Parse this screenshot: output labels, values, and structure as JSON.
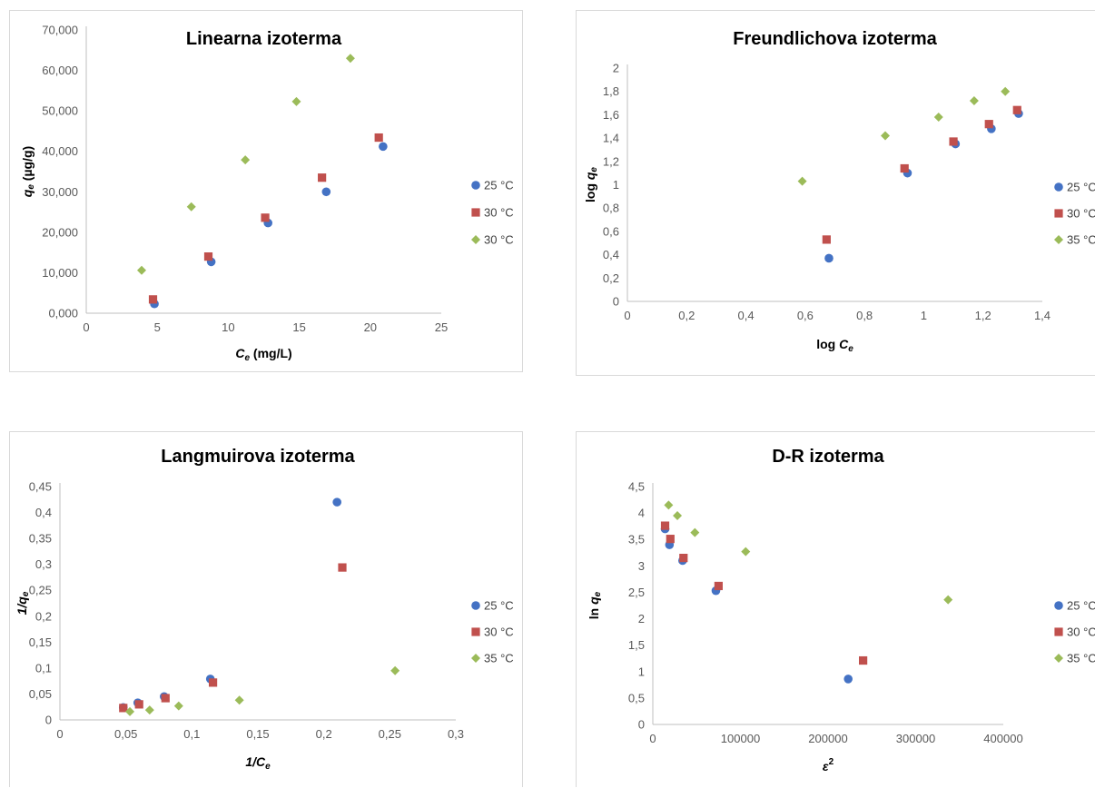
{
  "chart_data": [
    {
      "type": "scatter",
      "title": "Linearna izoterma",
      "xlabel": {
        "var": "C",
        "sub": "e",
        "rest": " (mg/L)"
      },
      "ylabel": {
        "var": "q",
        "sub": "e",
        "rest": " (µg/g)"
      },
      "xlim": [
        0,
        25
      ],
      "ylim": [
        0,
        70000
      ],
      "xticks": [
        "0",
        "5",
        "10",
        "15",
        "20",
        "25"
      ],
      "yticks": [
        "0,000",
        "10,000",
        "20,000",
        "30,000",
        "40,000",
        "50,000",
        "60,000",
        "70,000"
      ],
      "grid": false,
      "legend_position": "right",
      "series": [
        {
          "name": "25 °C",
          "color": "#4472c4",
          "marker": "circle",
          "points": [
            [
              4.8,
              2300
            ],
            [
              8.8,
              12700
            ],
            [
              12.8,
              22300
            ],
            [
              16.9,
              30000
            ],
            [
              20.9,
              41200
            ]
          ]
        },
        {
          "name": "30 °C",
          "color": "#c0504d",
          "marker": "square",
          "points": [
            [
              4.7,
              3400
            ],
            [
              8.6,
              14000
            ],
            [
              12.6,
              23600
            ],
            [
              16.6,
              33500
            ],
            [
              20.6,
              43400
            ]
          ]
        },
        {
          "name": "30 °C",
          "color": "#9bbb59",
          "marker": "diamond",
          "points": [
            [
              3.9,
              10600
            ],
            [
              7.4,
              26300
            ],
            [
              11.2,
              37900
            ],
            [
              14.8,
              52300
            ],
            [
              18.6,
              63000
            ]
          ]
        }
      ]
    },
    {
      "type": "scatter",
      "title": "Freundlichova izoterma",
      "xlabel": {
        "var": "log C",
        "sub": "e",
        "rest": ""
      },
      "ylabel": {
        "var": "log q",
        "sub": "e",
        "rest": ""
      },
      "xlim": [
        0,
        1.4
      ],
      "ylim": [
        0,
        2
      ],
      "xticks": [
        "0",
        "0,2",
        "0,4",
        "0,6",
        "0,8",
        "1",
        "1,2",
        "1,4"
      ],
      "yticks": [
        "0",
        "0,2",
        "0,4",
        "0,6",
        "0,8",
        "1",
        "1,2",
        "1,4",
        "1,6",
        "1,8",
        "2"
      ],
      "grid": false,
      "legend_position": "right",
      "series": [
        {
          "name": "25 °C",
          "color": "#4472c4",
          "marker": "circle",
          "points": [
            [
              0.68,
              0.37
            ],
            [
              0.945,
              1.1
            ],
            [
              1.107,
              1.35
            ],
            [
              1.228,
              1.48
            ],
            [
              1.32,
              1.61
            ]
          ]
        },
        {
          "name": "30 °C",
          "color": "#c0504d",
          "marker": "square",
          "points": [
            [
              0.672,
              0.53
            ],
            [
              0.935,
              1.14
            ],
            [
              1.1,
              1.37
            ],
            [
              1.22,
              1.52
            ],
            [
              1.315,
              1.64
            ]
          ]
        },
        {
          "name": "35 °C",
          "color": "#9bbb59",
          "marker": "diamond",
          "points": [
            [
              0.59,
              1.03
            ],
            [
              0.87,
              1.42
            ],
            [
              1.05,
              1.58
            ],
            [
              1.17,
              1.72
            ],
            [
              1.275,
              1.8
            ]
          ]
        }
      ]
    },
    {
      "type": "scatter",
      "title": "Langmuirova izoterma",
      "xlabel": {
        "var": "1/C",
        "sub": "e",
        "rest": ""
      },
      "ylabel": {
        "var": "1/q",
        "sub": "e",
        "rest": ""
      },
      "xlim": [
        0,
        0.3
      ],
      "ylim": [
        0,
        0.45
      ],
      "xticks": [
        "0",
        "0,05",
        "0,1",
        "0,15",
        "0,2",
        "0,25",
        "0,3"
      ],
      "yticks": [
        "0",
        "0,05",
        "0,1",
        "0,15",
        "0,2",
        "0,25",
        "0,3",
        "0,35",
        "0,4",
        "0,45"
      ],
      "grid": false,
      "legend_position": "right",
      "series": [
        {
          "name": "25 °C",
          "color": "#4472c4",
          "marker": "circle",
          "points": [
            [
              0.048,
              0.024
            ],
            [
              0.059,
              0.033
            ],
            [
              0.079,
              0.045
            ],
            [
              0.114,
              0.079
            ],
            [
              0.21,
              0.42
            ]
          ]
        },
        {
          "name": "30 °C",
          "color": "#c0504d",
          "marker": "square",
          "points": [
            [
              0.048,
              0.023
            ],
            [
              0.06,
              0.03
            ],
            [
              0.08,
              0.042
            ],
            [
              0.116,
              0.072
            ],
            [
              0.214,
              0.294
            ]
          ]
        },
        {
          "name": "35 °C",
          "color": "#9bbb59",
          "marker": "diamond",
          "points": [
            [
              0.053,
              0.016
            ],
            [
              0.068,
              0.019
            ],
            [
              0.09,
              0.027
            ],
            [
              0.136,
              0.038
            ],
            [
              0.254,
              0.095
            ]
          ]
        }
      ]
    },
    {
      "type": "scatter",
      "title": "D-R izoterma",
      "xlabel": {
        "var": "ε",
        "sub": "",
        "sup": "2",
        "rest": ""
      },
      "ylabel": {
        "var": "ln q",
        "sub": "e",
        "rest": ""
      },
      "xlim": [
        0,
        400000
      ],
      "ylim": [
        0,
        4.5
      ],
      "xticks": [
        "0",
        "100000",
        "200000",
        "300000",
        "400000"
      ],
      "yticks": [
        "0",
        "0,5",
        "1",
        "1,5",
        "2",
        "2,5",
        "3",
        "3,5",
        "4",
        "4,5"
      ],
      "grid": false,
      "legend_position": "right",
      "series": [
        {
          "name": "25 °C",
          "color": "#4472c4",
          "marker": "circle",
          "points": [
            [
              14000,
              3.7
            ],
            [
              19000,
              3.4
            ],
            [
              34000,
              3.1
            ],
            [
              72000,
              2.53
            ],
            [
              223000,
              0.86
            ]
          ]
        },
        {
          "name": "30 °C",
          "color": "#c0504d",
          "marker": "square",
          "points": [
            [
              14000,
              3.76
            ],
            [
              20000,
              3.51
            ],
            [
              35000,
              3.15
            ],
            [
              75000,
              2.62
            ],
            [
              240000,
              1.21
            ]
          ]
        },
        {
          "name": "35 °C",
          "color": "#9bbb59",
          "marker": "diamond",
          "points": [
            [
              18000,
              4.15
            ],
            [
              28000,
              3.95
            ],
            [
              48000,
              3.63
            ],
            [
              106000,
              3.27
            ],
            [
              337000,
              2.36
            ]
          ]
        }
      ]
    }
  ]
}
